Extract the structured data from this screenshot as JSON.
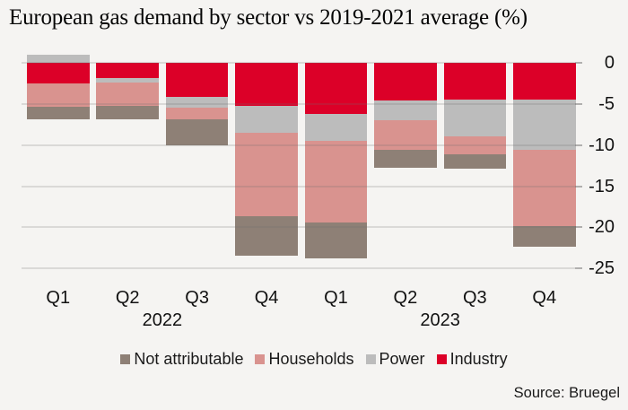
{
  "title": "European gas demand by sector vs 2019-2021 average (%)",
  "source_label": "Source: Bruegel",
  "colors": {
    "industry_red": "#dc0028",
    "power_gray": "#bcbcbc",
    "households_pink": "#d9938f",
    "not_attributable_brown": "#8e8076",
    "background": "#f5f4f2"
  },
  "chart_data": {
    "type": "bar",
    "stacked": true,
    "title": "European gas demand by sector vs 2019-2021 average (%)",
    "unit": "%",
    "categories": [
      "Q1",
      "Q2",
      "Q3",
      "Q4",
      "Q1",
      "Q2",
      "Q3",
      "Q4"
    ],
    "groups": [
      {
        "label": "2022",
        "span": [
          0,
          3
        ]
      },
      {
        "label": "2023",
        "span": [
          4,
          7
        ]
      }
    ],
    "series": [
      {
        "name": "Industry",
        "color": "#dc0028",
        "values": [
          -2.5,
          -1.9,
          -4.1,
          -5.2,
          -6.2,
          -4.6,
          -4.5,
          -4.5
        ]
      },
      {
        "name": "Power",
        "color": "#bcbcbc",
        "values": [
          1.0,
          -0.5,
          -1.4,
          -3.3,
          -3.3,
          -2.4,
          -4.4,
          -6.1
        ]
      },
      {
        "name": "Households",
        "color": "#d9938f",
        "values": [
          -2.8,
          -2.8,
          -1.4,
          -10.1,
          -9.9,
          -3.6,
          -2.2,
          -9.3
        ]
      },
      {
        "name": "Not attributable",
        "color": "#8e8076",
        "values": [
          -1.6,
          -1.7,
          -3.1,
          -4.8,
          -4.4,
          -2.2,
          -1.8,
          -2.5
        ]
      }
    ],
    "legend_order": [
      "Not attributable",
      "Households",
      "Power",
      "Industry"
    ],
    "y_ticks": [
      0,
      -5,
      -10,
      -15,
      -20,
      -25
    ],
    "ylim": [
      -25,
      1.5
    ],
    "grid": true,
    "legend_position": "bottom",
    "source": "Source: Bruegel"
  }
}
